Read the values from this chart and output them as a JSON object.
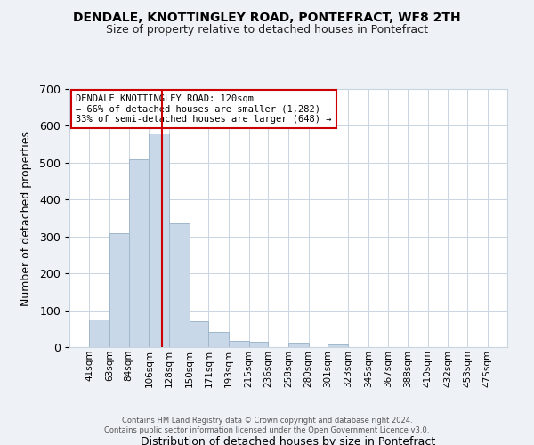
{
  "title": "DENDALE, KNOTTINGLEY ROAD, PONTEFRACT, WF8 2TH",
  "subtitle": "Size of property relative to detached houses in Pontefract",
  "xlabel": "Distribution of detached houses by size in Pontefract",
  "ylabel": "Number of detached properties",
  "bin_labels": [
    "41sqm",
    "63sqm",
    "84sqm",
    "106sqm",
    "128sqm",
    "150sqm",
    "171sqm",
    "193sqm",
    "215sqm",
    "236sqm",
    "258sqm",
    "280sqm",
    "301sqm",
    "323sqm",
    "345sqm",
    "367sqm",
    "388sqm",
    "410sqm",
    "432sqm",
    "453sqm",
    "475sqm"
  ],
  "bin_edges": [
    41,
    63,
    84,
    106,
    128,
    150,
    171,
    193,
    215,
    236,
    258,
    280,
    301,
    323,
    345,
    367,
    388,
    410,
    432,
    453,
    475
  ],
  "bar_heights": [
    75,
    310,
    510,
    580,
    335,
    70,
    40,
    18,
    14,
    0,
    12,
    0,
    7,
    0,
    0,
    0,
    0,
    0,
    0,
    0
  ],
  "bar_color": "#c8d8e8",
  "bar_edge_color": "#a0b8cc",
  "marker_value": 120,
  "marker_color": "#cc0000",
  "ylim": [
    0,
    700
  ],
  "yticks": [
    0,
    100,
    200,
    300,
    400,
    500,
    600,
    700
  ],
  "annotation_title": "DENDALE KNOTTINGLEY ROAD: 120sqm",
  "annotation_line1": "← 66% of detached houses are smaller (1,282)",
  "annotation_line2": "33% of semi-detached houses are larger (648) →",
  "footer1": "Contains HM Land Registry data © Crown copyright and database right 2024.",
  "footer2": "Contains public sector information licensed under the Open Government Licence v3.0.",
  "background_color": "#eef2f6",
  "plot_background_color": "#ffffff",
  "grid_color": "#c8d4e0"
}
